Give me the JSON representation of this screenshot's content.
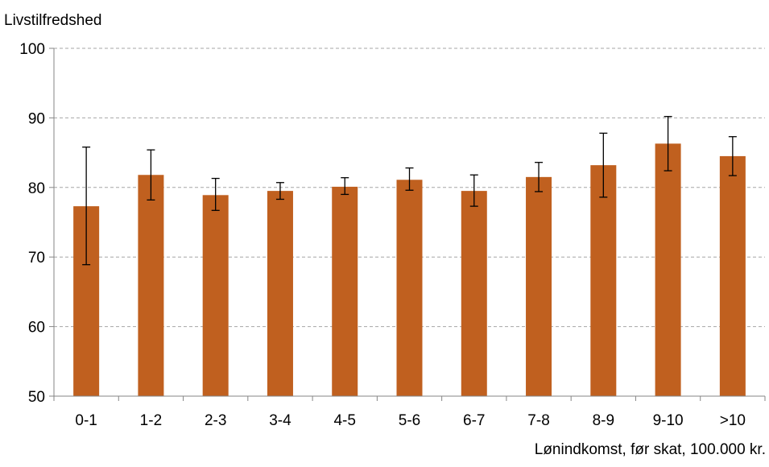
{
  "chart_data": {
    "type": "bar",
    "title": "",
    "ylabel": "Livstilfredshed",
    "xlabel": "Lønindkomst, før skat, 100.000 kr.",
    "categories": [
      "0-1",
      "1-2",
      "2-3",
      "3-4",
      "4-5",
      "5-6",
      "6-7",
      "7-8",
      "8-9",
      "9-10",
      ">10"
    ],
    "values": [
      77.3,
      81.8,
      78.9,
      79.5,
      80.1,
      81.1,
      79.5,
      81.5,
      83.2,
      86.3,
      84.5
    ],
    "error_low": [
      68.9,
      78.2,
      76.7,
      78.3,
      79.0,
      79.6,
      77.3,
      79.4,
      78.6,
      82.4,
      81.7
    ],
    "error_high": [
      85.8,
      85.4,
      81.3,
      80.7,
      81.4,
      82.8,
      81.8,
      83.6,
      87.8,
      90.2,
      87.3
    ],
    "ylim": [
      50,
      100
    ],
    "yticks": [
      "50",
      "60",
      "70",
      "80",
      "90",
      "100"
    ],
    "grid": true,
    "bar_color": "#C0601F",
    "grid_color": "#A6A6A6",
    "axis_color": "#868686"
  }
}
